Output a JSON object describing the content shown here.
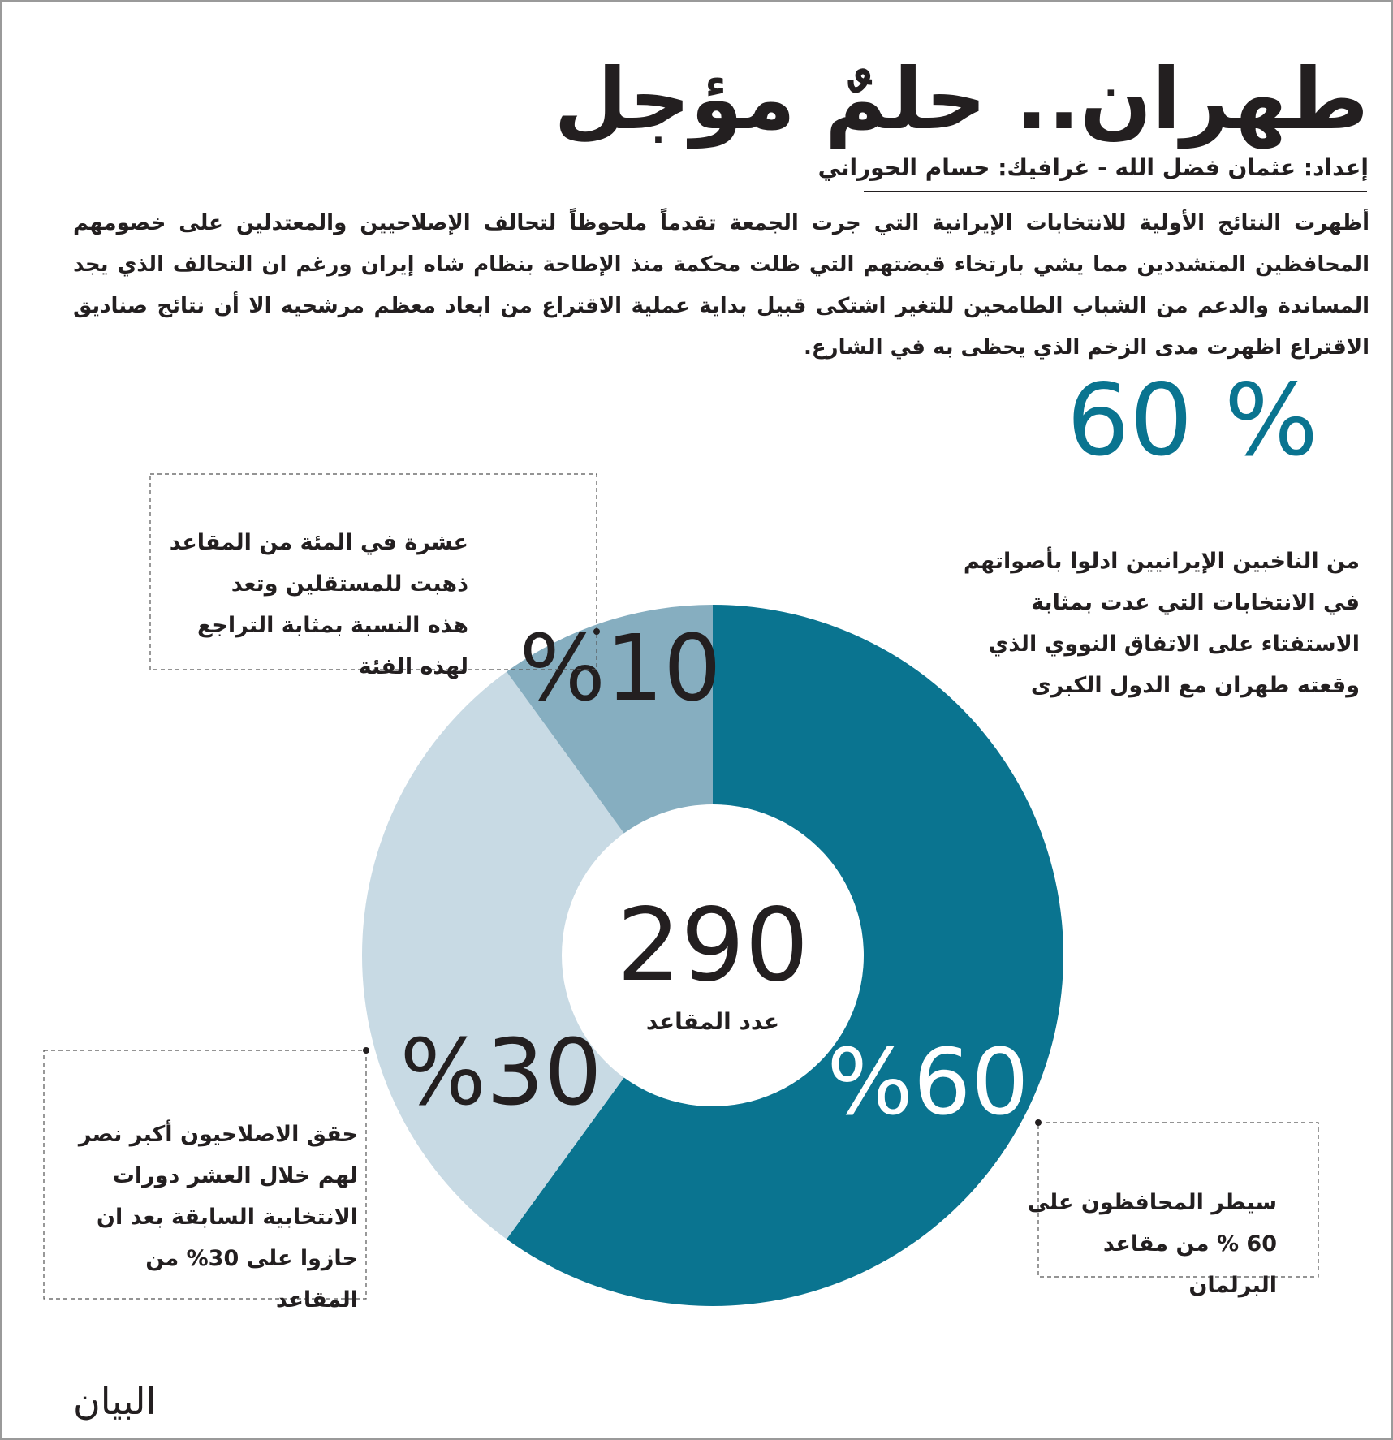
{
  "title": "طهران.. حلمٌ مؤجل",
  "byline": "إعداد: عثمان فضل الله - غرافيك: حسام الحوراني",
  "intro": [
    "أظهرت النتائج الأولية للانتخابات الإيرانية التي جرت الجمعة تقدماً ملحوظاً لتحالف الإصلاحيين والمعتدلين على خصومهم",
    "المحافظين المتشددين مما يشي بارتخاء قبضتهم التي ظلت محكمة منذ الإطاحة بنظام شاه إيران ورغم ان التحالف الذي يجد",
    "المساندة والدعم من الشباب الطامحين للتغير اشتكى قبيل بداية عملية الاقتراع من ابعاد معظم مرشحيه الا أن نتائج صناديق",
    "الاقتراع اظهرت مدى الزخم الذي يحظى به في الشارع."
  ],
  "highlight": "% 60",
  "highlight_text": [
    "من الناخبين الإيرانيين ادلوا بأصواتهم",
    "في الانتخابات التي عدت بمثابة",
    "الاستفتاء على الاتفاق النووي الذي",
    "وقعته طهران مع الدول الكبرى"
  ],
  "chart_data": {
    "type": "donut",
    "values": [
      60,
      30,
      10
    ],
    "value_labels": [
      "%60",
      "%30",
      "%10"
    ],
    "colors": [
      "#0a7490",
      "#c8dae4",
      "#86aec0"
    ],
    "center_value": 290,
    "center_label": "عدد المقاعد",
    "annotations": [
      [
        "سيطر المحافظون على",
        "60 % من مقاعد",
        "البرلمان"
      ],
      [
        "حقق الاصلاحيون أكبر نصر",
        "لهم خلال العشر دورات",
        "الانتخابية السابقة بعد ان",
        "حازوا على 30% من",
        "المقاعد"
      ],
      [
        "عشرة في المئة من المقاعد",
        "ذهبت للمستقلين وتعد",
        "هذه النسبة بمثابة التراجع",
        "لهذه الفئة"
      ]
    ]
  },
  "logo": "البيان"
}
